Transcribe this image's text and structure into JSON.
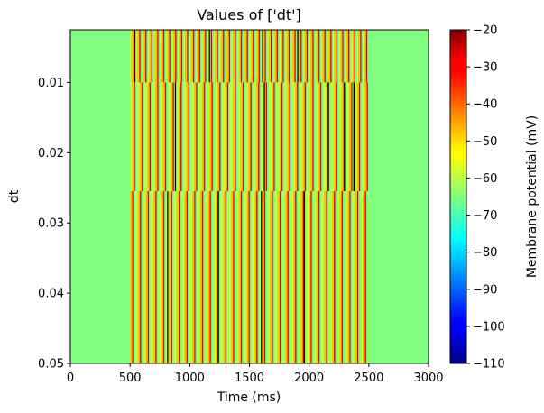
{
  "chart_data": {
    "type": "heatmap",
    "title": "Values of ['dt']",
    "xlabel": "Time (ms)",
    "ylabel": "dt",
    "xlim": [
      0,
      3000
    ],
    "ylim": [
      0.05,
      0.0025
    ],
    "x_ticks": [
      0,
      500,
      1000,
      1500,
      2000,
      2500,
      3000
    ],
    "y_ticks": [
      0.01,
      0.02,
      0.03,
      0.04,
      0.05
    ],
    "y_tick_labels": [
      "0.01",
      "0.02",
      "0.03",
      "0.04",
      "0.05"
    ],
    "colorbar": {
      "label": "Membrane potential (mV)",
      "colormap": "jet",
      "range": [
        -110,
        -20
      ],
      "ticks": [
        -20,
        -30,
        -40,
        -50,
        -60,
        -70,
        -80,
        -90,
        -100,
        -110
      ],
      "tick_labels": [
        "−20",
        "−30",
        "−40",
        "−50",
        "−60",
        "−70",
        "−80",
        "−90",
        "−100",
        "−110"
      ]
    },
    "rest_potential_mv": -65,
    "stimulus_window_ms": [
      500,
      2500
    ],
    "rows": [
      {
        "dt_range": [
          0.0025,
          0.01
        ],
        "spike_times_ms": [
          535,
          585,
          635,
          685,
          735,
          785,
          835,
          885,
          935,
          985,
          1035,
          1085,
          1135,
          1185,
          1235,
          1285,
          1335,
          1385,
          1435,
          1485,
          1535,
          1585,
          1635,
          1685,
          1735,
          1785,
          1835,
          1885,
          1935,
          1985,
          2035,
          2085,
          2135,
          2185,
          2235,
          2285,
          2335,
          2385,
          2435,
          2485
        ],
        "trough_times_ms": [
          540,
          1165,
          1610,
          1905
        ]
      },
      {
        "dt_range": [
          0.01,
          0.0255
        ],
        "spike_times_ms": [
          540,
          605,
          670,
          735,
          800,
          865,
          930,
          995,
          1060,
          1125,
          1190,
          1255,
          1320,
          1385,
          1450,
          1515,
          1580,
          1645,
          1710,
          1775,
          1840,
          1905,
          1970,
          2035,
          2100,
          2165,
          2230,
          2295,
          2360,
          2425,
          2490
        ],
        "trough_times_ms": [
          880,
          1625,
          2160,
          2295,
          2375
        ]
      },
      {
        "dt_range": [
          0.0255,
          0.05
        ],
        "spike_times_ms": [
          525,
          590,
          655,
          720,
          785,
          850,
          915,
          980,
          1045,
          1110,
          1175,
          1240,
          1305,
          1370,
          1435,
          1500,
          1565,
          1630,
          1695,
          1760,
          1825,
          1890,
          1955,
          2020,
          2085,
          2150,
          2215,
          2280,
          2345,
          2410,
          2475
        ],
        "trough_times_ms": [
          815,
          1240,
          1600,
          1960
        ]
      }
    ]
  }
}
